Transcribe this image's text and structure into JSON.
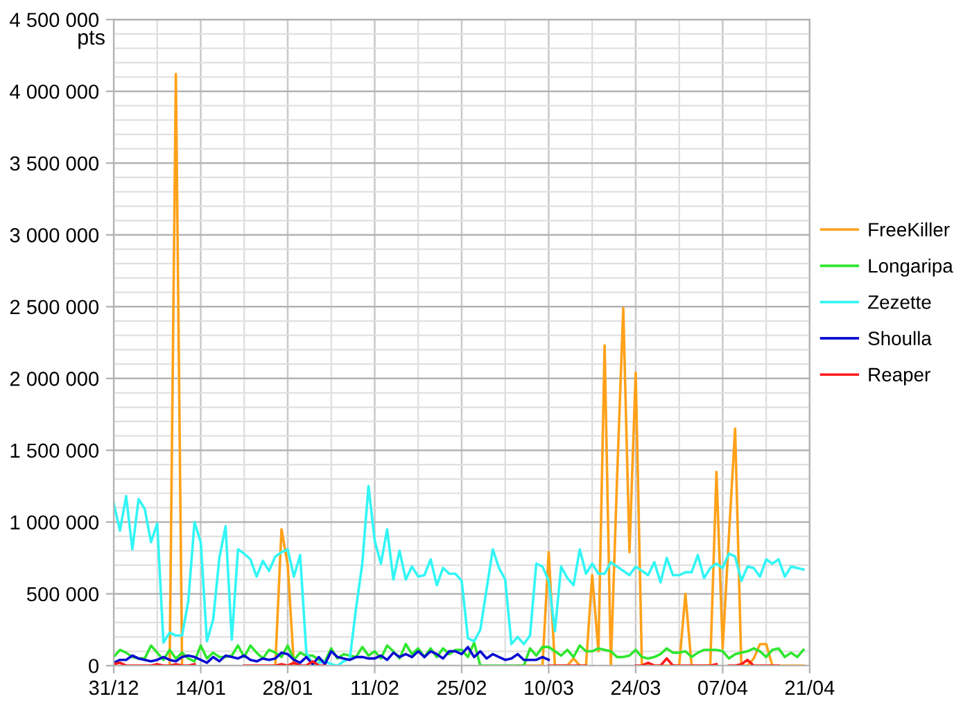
{
  "chart_data": {
    "type": "line",
    "ylabel": "pts",
    "categories": [
      "31/12",
      null,
      null,
      null,
      null,
      null,
      null,
      null,
      null,
      null,
      null,
      null,
      null,
      null,
      "14/01",
      null,
      null,
      null,
      null,
      null,
      null,
      null,
      null,
      null,
      null,
      null,
      null,
      null,
      "28/01",
      null,
      null,
      null,
      null,
      null,
      null,
      null,
      null,
      null,
      null,
      null,
      null,
      null,
      "11/02",
      null,
      null,
      null,
      null,
      null,
      null,
      null,
      null,
      null,
      null,
      null,
      null,
      null,
      "25/02",
      null,
      null,
      null,
      null,
      null,
      null,
      null,
      null,
      null,
      null,
      null,
      null,
      null,
      "10/03",
      null,
      null,
      null,
      null,
      null,
      null,
      null,
      null,
      null,
      null,
      null,
      null,
      null,
      "24/03",
      null,
      null,
      null,
      null,
      null,
      null,
      null,
      null,
      null,
      null,
      null,
      null,
      null,
      "07/04",
      null,
      null,
      null,
      null,
      null,
      null,
      null,
      null,
      null,
      null,
      null,
      null,
      null,
      "21/04"
    ],
    "series": [
      {
        "name": "FreeKiller",
        "color": "#ffa11a",
        "values": [
          null,
          null,
          null,
          null,
          null,
          null,
          null,
          null,
          null,
          0,
          4120000,
          0,
          null,
          null,
          null,
          null,
          null,
          null,
          null,
          null,
          null,
          null,
          null,
          null,
          null,
          null,
          0,
          950000,
          700000,
          0,
          null,
          null,
          null,
          null,
          null,
          null,
          null,
          null,
          null,
          null,
          null,
          null,
          null,
          null,
          null,
          null,
          null,
          null,
          null,
          null,
          null,
          null,
          null,
          null,
          null,
          null,
          null,
          null,
          null,
          null,
          null,
          null,
          null,
          null,
          null,
          0,
          0,
          0,
          0,
          0,
          790000,
          0,
          0,
          0,
          50000,
          0,
          0,
          630000,
          100000,
          2230000,
          0,
          1300000,
          2490000,
          790000,
          2040000,
          0,
          0,
          0,
          0,
          0,
          0,
          0,
          500000,
          0,
          0,
          0,
          0,
          1350000,
          120000,
          900000,
          1650000,
          0,
          0,
          50000,
          150000,
          150000,
          0,
          0,
          0,
          0,
          0,
          0,
          null
        ]
      },
      {
        "name": "Longaripa",
        "color": "#2ee62e",
        "values": [
          60000,
          110000,
          90000,
          60000,
          50000,
          50000,
          140000,
          90000,
          40000,
          110000,
          50000,
          90000,
          50000,
          30000,
          140000,
          50000,
          90000,
          60000,
          60000,
          70000,
          140000,
          60000,
          140000,
          90000,
          50000,
          110000,
          90000,
          60000,
          140000,
          40000,
          90000,
          70000,
          70000,
          40000,
          30000,
          120000,
          50000,
          80000,
          70000,
          60000,
          130000,
          70000,
          100000,
          50000,
          140000,
          100000,
          50000,
          150000,
          80000,
          120000,
          60000,
          120000,
          60000,
          120000,
          80000,
          110000,
          110000,
          60000,
          160000,
          0,
          0,
          0,
          0,
          0,
          0,
          0,
          0,
          120000,
          70000,
          130000,
          130000,
          100000,
          70000,
          110000,
          60000,
          140000,
          100000,
          100000,
          120000,
          110000,
          100000,
          60000,
          60000,
          70000,
          110000,
          60000,
          50000,
          60000,
          80000,
          120000,
          90000,
          90000,
          100000,
          60000,
          90000,
          110000,
          110000,
          110000,
          100000,
          50000,
          80000,
          90000,
          100000,
          120000,
          100000,
          60000,
          110000,
          120000,
          60000,
          90000,
          60000,
          110000,
          null
        ]
      },
      {
        "name": "Zezette",
        "color": "#33f5f5",
        "values": [
          1130000,
          940000,
          1180000,
          810000,
          1160000,
          1090000,
          860000,
          990000,
          160000,
          230000,
          210000,
          210000,
          450000,
          1000000,
          860000,
          170000,
          320000,
          750000,
          970000,
          180000,
          810000,
          780000,
          740000,
          620000,
          730000,
          660000,
          760000,
          790000,
          810000,
          620000,
          770000,
          90000,
          10000,
          20000,
          30000,
          10000,
          0,
          30000,
          50000,
          400000,
          710000,
          1250000,
          870000,
          710000,
          950000,
          600000,
          800000,
          600000,
          690000,
          620000,
          630000,
          740000,
          560000,
          680000,
          640000,
          640000,
          590000,
          190000,
          170000,
          250000,
          530000,
          810000,
          680000,
          600000,
          150000,
          200000,
          150000,
          210000,
          710000,
          690000,
          590000,
          240000,
          690000,
          610000,
          560000,
          810000,
          640000,
          710000,
          640000,
          640000,
          720000,
          690000,
          660000,
          630000,
          690000,
          660000,
          630000,
          720000,
          580000,
          750000,
          630000,
          630000,
          650000,
          650000,
          770000,
          610000,
          680000,
          710000,
          680000,
          780000,
          760000,
          590000,
          690000,
          680000,
          620000,
          740000,
          710000,
          740000,
          620000,
          690000,
          680000,
          670000,
          null
        ]
      },
      {
        "name": "Shoulla",
        "color": "#0a0ad2",
        "values": [
          20000,
          40000,
          40000,
          70000,
          50000,
          40000,
          30000,
          40000,
          60000,
          40000,
          30000,
          60000,
          70000,
          60000,
          40000,
          20000,
          60000,
          30000,
          70000,
          60000,
          50000,
          70000,
          40000,
          30000,
          50000,
          40000,
          50000,
          90000,
          80000,
          40000,
          20000,
          60000,
          10000,
          60000,
          10000,
          100000,
          60000,
          50000,
          40000,
          60000,
          60000,
          50000,
          50000,
          70000,
          40000,
          90000,
          60000,
          80000,
          60000,
          100000,
          60000,
          100000,
          80000,
          50000,
          100000,
          100000,
          80000,
          130000,
          60000,
          100000,
          50000,
          80000,
          60000,
          40000,
          50000,
          80000,
          40000,
          40000,
          40000,
          60000,
          40000,
          null,
          null,
          null,
          null,
          null,
          null,
          null,
          null,
          null,
          null,
          null,
          null,
          null,
          null,
          null,
          null,
          null,
          null,
          null,
          null,
          null,
          null,
          null,
          null,
          null,
          null,
          null,
          null,
          null,
          null,
          null,
          null,
          null,
          null,
          null,
          null,
          null,
          null,
          null,
          null,
          null,
          null
        ]
      },
      {
        "name": "Reaper",
        "color": "#ff1a1a",
        "values": [
          10000,
          20000,
          0,
          0,
          0,
          0,
          0,
          10000,
          0,
          0,
          10000,
          0,
          0,
          10000,
          null,
          null,
          null,
          null,
          null,
          null,
          null,
          0,
          0,
          0,
          0,
          0,
          0,
          10000,
          0,
          20000,
          0,
          0,
          30000,
          0,
          0,
          null,
          null,
          null,
          null,
          null,
          null,
          null,
          null,
          null,
          null,
          null,
          null,
          null,
          null,
          null,
          null,
          null,
          null,
          null,
          null,
          null,
          null,
          null,
          null,
          null,
          null,
          null,
          null,
          null,
          null,
          null,
          null,
          null,
          null,
          null,
          0,
          0,
          0,
          0,
          0,
          0,
          0,
          null,
          null,
          null,
          null,
          null,
          null,
          null,
          0,
          0,
          20000,
          0,
          0,
          50000,
          0,
          0,
          0,
          0,
          0,
          0,
          0,
          10000,
          null,
          0,
          0,
          10000,
          40000,
          0,
          0,
          0,
          0,
          0,
          null,
          null,
          null,
          null,
          null
        ]
      }
    ],
    "ylim": [
      0,
      4500000
    ],
    "yticks": [
      0,
      {
        "value": 500000,
        "label": "500 000"
      },
      {
        "value": 1000000,
        "label": "1 000 000"
      },
      {
        "value": 1500000,
        "label": "1 500 000"
      },
      {
        "value": 2000000,
        "label": "2 000 000"
      },
      {
        "value": 2500000,
        "label": "2 500 000"
      },
      {
        "value": 3000000,
        "label": "3 000 000"
      },
      {
        "value": 3500000,
        "label": "3 500 000"
      },
      {
        "value": 4000000,
        "label": "4 000 000"
      },
      {
        "value": 4500000,
        "label": "4 500 000"
      }
    ],
    "grid": true,
    "legend": "right",
    "marker": "none",
    "line_style": "solid"
  }
}
